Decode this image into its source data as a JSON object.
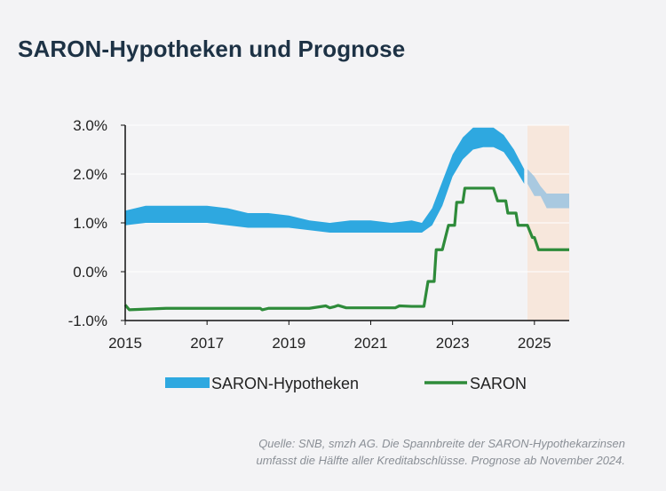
{
  "title": "SARON-Hypotheken und Prognose",
  "source_line1": "Quelle: SNB, smzh AG. Die Spannbreite der SARON-Hypothekarzinsen",
  "source_line2": "umfasst die Hälfte aller Kreditabschlüsse. Prognose ab November 2024.",
  "colors": {
    "band": "#2ea8e0",
    "band_forecast": "#a9c9e0",
    "saron": "#2e8b3a",
    "forecast_bg": "#f7e7dc",
    "axis": "#111111",
    "grid": "#ffffff"
  },
  "chart_data": {
    "type": "area",
    "title": "SARON-Hypotheken und Prognose",
    "xlim": [
      2015.0,
      2025.85
    ],
    "ylim": [
      -1.0,
      3.0
    ],
    "x_ticks": [
      2015,
      2017,
      2019,
      2021,
      2023,
      2025
    ],
    "y_ticks": [
      -1.0,
      0.0,
      1.0,
      2.0,
      3.0
    ],
    "y_tick_labels": [
      "-1.0%",
      "0.0%",
      "1.0%",
      "2.0%",
      "3.0%"
    ],
    "forecast_start": 2024.83,
    "legend": [
      "SARON-Hypotheken",
      "SARON"
    ],
    "series": [
      {
        "name": "SARON-Hypotheken",
        "kind": "band",
        "x": [
          2015.0,
          2015.5,
          2016.0,
          2016.5,
          2017.0,
          2017.5,
          2018.0,
          2018.5,
          2019.0,
          2019.5,
          2020.0,
          2020.5,
          2021.0,
          2021.5,
          2022.0,
          2022.25,
          2022.5,
          2022.75,
          2023.0,
          2023.25,
          2023.5,
          2023.75,
          2024.0,
          2024.25,
          2024.5,
          2024.75
        ],
        "low": [
          0.95,
          1.0,
          1.0,
          1.0,
          1.0,
          0.95,
          0.9,
          0.9,
          0.9,
          0.85,
          0.8,
          0.8,
          0.8,
          0.8,
          0.8,
          0.8,
          0.95,
          1.35,
          1.95,
          2.3,
          2.5,
          2.55,
          2.55,
          2.45,
          2.15,
          1.8
        ],
        "high": [
          1.25,
          1.35,
          1.35,
          1.35,
          1.35,
          1.3,
          1.2,
          1.2,
          1.15,
          1.05,
          1.0,
          1.05,
          1.05,
          1.0,
          1.05,
          1.0,
          1.3,
          1.85,
          2.4,
          2.75,
          2.95,
          2.95,
          2.95,
          2.8,
          2.5,
          2.1
        ]
      },
      {
        "name": "SARON-Hypotheken Prognose",
        "kind": "band_forecast",
        "x": [
          2024.83,
          2025.0,
          2025.15,
          2025.3,
          2025.85
        ],
        "low": [
          1.8,
          1.55,
          1.55,
          1.3,
          1.3
        ],
        "high": [
          2.1,
          1.95,
          1.75,
          1.6,
          1.6
        ]
      },
      {
        "name": "SARON",
        "kind": "line",
        "x": [
          2015.0,
          2015.1,
          2016.0,
          2017.0,
          2018.0,
          2018.3,
          2018.35,
          2018.5,
          2019.0,
          2019.5,
          2019.9,
          2020.0,
          2020.1,
          2020.2,
          2020.4,
          2021.0,
          2021.6,
          2021.7,
          2022.0,
          2022.3,
          2022.4,
          2022.55,
          2022.6,
          2022.7,
          2022.75,
          2022.9,
          2022.95,
          2023.05,
          2023.1,
          2023.25,
          2023.3,
          2023.45,
          2023.5,
          2024.0,
          2024.1,
          2024.3,
          2024.35,
          2024.55,
          2024.6,
          2024.83,
          2024.95,
          2025.0,
          2025.1,
          2025.25,
          2025.85
        ],
        "y": [
          -0.68,
          -0.78,
          -0.75,
          -0.75,
          -0.75,
          -0.75,
          -0.78,
          -0.75,
          -0.75,
          -0.75,
          -0.7,
          -0.74,
          -0.72,
          -0.69,
          -0.74,
          -0.74,
          -0.74,
          -0.7,
          -0.71,
          -0.71,
          -0.2,
          -0.2,
          0.45,
          0.45,
          0.45,
          0.95,
          0.95,
          0.95,
          1.42,
          1.42,
          1.71,
          1.71,
          1.71,
          1.71,
          1.45,
          1.45,
          1.2,
          1.2,
          0.95,
          0.95,
          0.7,
          0.7,
          0.45,
          0.45,
          0.45
        ]
      }
    ]
  }
}
